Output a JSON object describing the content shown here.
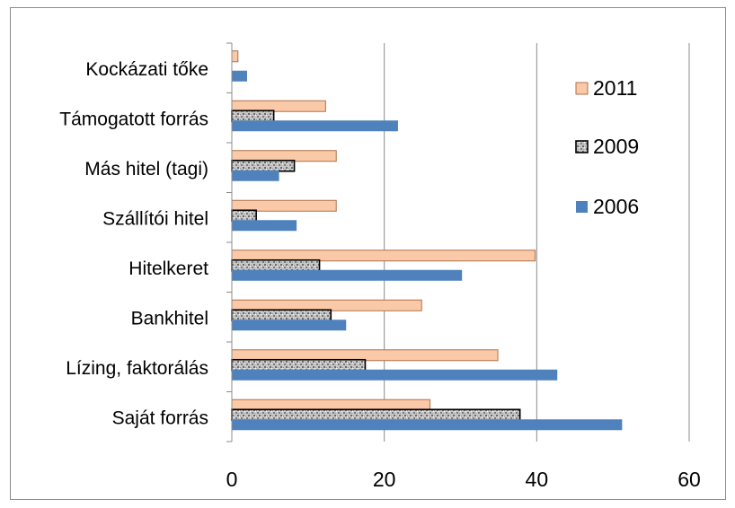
{
  "chart_data": {
    "type": "bar",
    "orientation": "horizontal",
    "categories": [
      "Kockázati tőke",
      "Támogatott forrás",
      "Más hitel (tagi)",
      "Szállítói hitel",
      "Hitelkeret",
      "Bankhitel",
      "Lízing, faktorálás",
      "Saját forrás"
    ],
    "series": [
      {
        "name": "2011",
        "color": "#FAC9A8",
        "pattern": "solid",
        "values": [
          0.8,
          12.3,
          13.7,
          13.7,
          39.8,
          24.9,
          34.9,
          26.0
        ]
      },
      {
        "name": "2009",
        "color": "#A6A6A6",
        "pattern": "speckled",
        "values": [
          0,
          5.5,
          8.2,
          3.2,
          11.5,
          13.0,
          17.5,
          37.8
        ]
      },
      {
        "name": "2006",
        "color": "#4F81BD",
        "pattern": "solid",
        "values": [
          2.0,
          21.8,
          6.2,
          8.5,
          30.2,
          15.0,
          42.7,
          51.2
        ]
      }
    ],
    "xlim": [
      0,
      60
    ],
    "xticks": [
      0,
      20,
      40,
      60
    ],
    "grid": true,
    "legend_position": "right",
    "title": "",
    "xlabel": "",
    "ylabel": ""
  }
}
